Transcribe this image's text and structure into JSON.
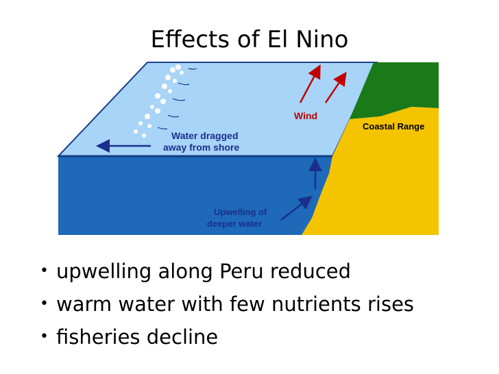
{
  "title": "Effects of El Nino",
  "diagram": {
    "labels": {
      "wind": "Wind",
      "coastal_range": "Coastal Range",
      "water_dragged_1": "Water dragged",
      "water_dragged_2": "away from shore",
      "upwelling_1": "Upwelling of",
      "upwelling_2": "deeper water"
    },
    "colors": {
      "surface_water": "#a8d4f7",
      "deep_water": "#1e6ab8",
      "land": "#f5c400",
      "vegetation": "#1a7a1a",
      "wind_arrow": "#c00000",
      "water_arrow": "#1a2f8c"
    }
  },
  "bullets": [
    "upwelling along Peru reduced",
    "warm water with few nutrients rises",
    "fisheries decline"
  ]
}
